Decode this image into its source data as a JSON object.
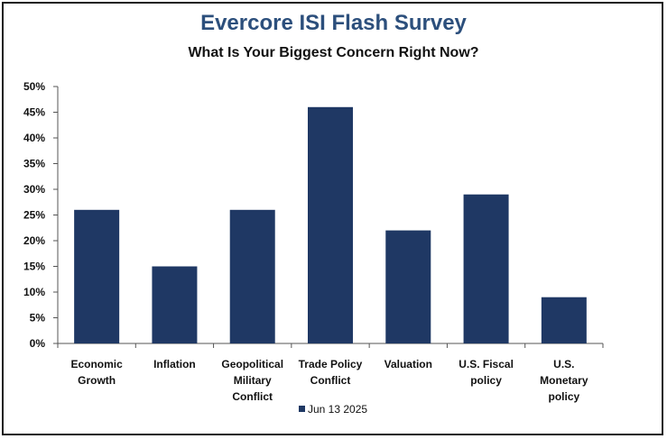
{
  "chart_data": {
    "type": "bar",
    "title": "Evercore ISI Flash Survey",
    "subtitle": "What Is Your Biggest Concern Right Now?",
    "categories": [
      [
        "Economic",
        "Growth"
      ],
      [
        "Inflation"
      ],
      [
        "Geopolitical",
        "Military",
        "Conflict"
      ],
      [
        "Trade Policy",
        "Conflict"
      ],
      [
        "Valuation"
      ],
      [
        "U.S. Fiscal",
        "policy"
      ],
      [
        "U.S.",
        "Monetary",
        "policy"
      ]
    ],
    "series": [
      {
        "name": "Jun 13 2025",
        "values": [
          26,
          15,
          26,
          46,
          22,
          29,
          9
        ]
      }
    ],
    "y_ticks": [
      "0%",
      "5%",
      "10%",
      "15%",
      "20%",
      "25%",
      "30%",
      "35%",
      "40%",
      "45%",
      "50%"
    ],
    "ylim": [
      0,
      50
    ],
    "grid": false,
    "legend_position": "bottom-center",
    "colors": {
      "bar": "#1f3864",
      "title": "#2c4f7c",
      "axis": "#555555"
    }
  }
}
